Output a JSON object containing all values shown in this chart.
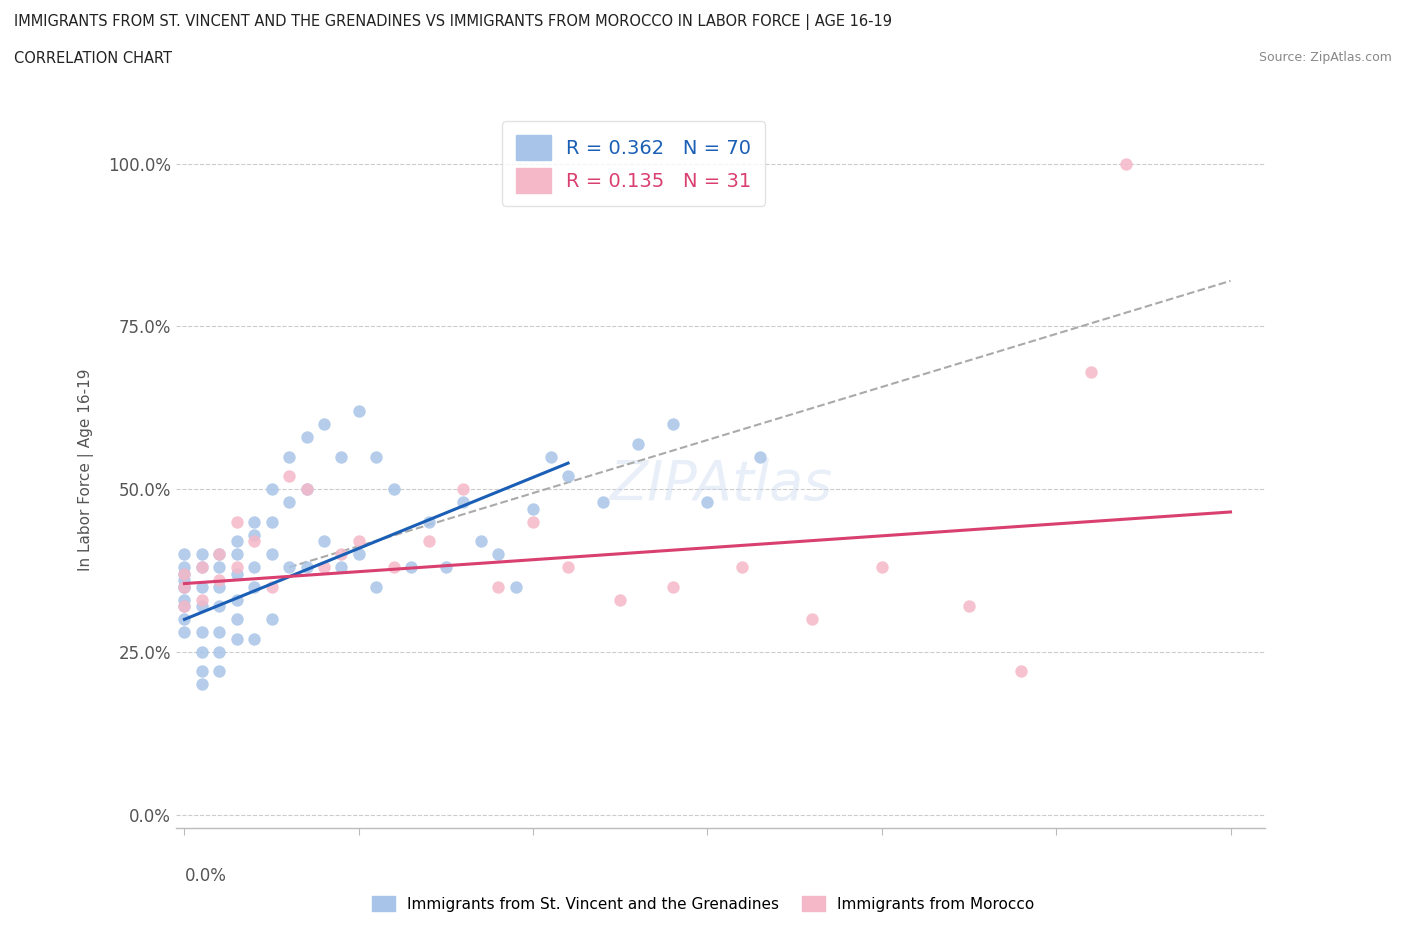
{
  "title": "IMMIGRANTS FROM ST. VINCENT AND THE GRENADINES VS IMMIGRANTS FROM MOROCCO IN LABOR FORCE | AGE 16-19",
  "subtitle": "CORRELATION CHART",
  "source": "Source: ZipAtlas.com",
  "ylabel": "In Labor Force | Age 16-19",
  "ytick_labels": [
    "0.0%",
    "25.0%",
    "50.0%",
    "75.0%",
    "100.0%"
  ],
  "ytick_values": [
    0.0,
    0.25,
    0.5,
    0.75,
    1.0
  ],
  "xlim": [
    -0.0005,
    0.062
  ],
  "ylim": [
    -0.02,
    1.08
  ],
  "blue_R": 0.362,
  "blue_N": 70,
  "pink_R": 0.135,
  "pink_N": 31,
  "blue_color": "#a8c4e8",
  "pink_color": "#f5b8c8",
  "blue_line_color": "#1a5fb5",
  "pink_line_color": "#d94070",
  "trend_line_color": "#aaaaaa",
  "watermark_text": "ZIPAtlas",
  "blue_trend": [
    0.0,
    0.3,
    0.022,
    0.54
  ],
  "pink_trend": [
    0.0,
    0.355,
    0.06,
    0.465
  ],
  "gray_trend": [
    0.006,
    0.38,
    0.06,
    0.82
  ],
  "blue_x": [
    0.0,
    0.0,
    0.0,
    0.0,
    0.0,
    0.0,
    0.0,
    0.0,
    0.0,
    0.0,
    0.001,
    0.001,
    0.001,
    0.001,
    0.001,
    0.001,
    0.001,
    0.001,
    0.002,
    0.002,
    0.002,
    0.002,
    0.002,
    0.002,
    0.002,
    0.003,
    0.003,
    0.003,
    0.003,
    0.003,
    0.003,
    0.004,
    0.004,
    0.004,
    0.004,
    0.004,
    0.005,
    0.005,
    0.005,
    0.005,
    0.006,
    0.006,
    0.006,
    0.007,
    0.007,
    0.007,
    0.008,
    0.008,
    0.009,
    0.009,
    0.01,
    0.01,
    0.011,
    0.011,
    0.012,
    0.013,
    0.014,
    0.015,
    0.016,
    0.017,
    0.018,
    0.019,
    0.02,
    0.021,
    0.022,
    0.024,
    0.026,
    0.028,
    0.03,
    0.033
  ],
  "blue_y": [
    0.33,
    0.35,
    0.37,
    0.38,
    0.4,
    0.35,
    0.32,
    0.3,
    0.28,
    0.36,
    0.38,
    0.4,
    0.35,
    0.32,
    0.28,
    0.25,
    0.22,
    0.2,
    0.4,
    0.38,
    0.35,
    0.32,
    0.28,
    0.25,
    0.22,
    0.42,
    0.4,
    0.37,
    0.33,
    0.3,
    0.27,
    0.45,
    0.43,
    0.38,
    0.35,
    0.27,
    0.5,
    0.45,
    0.4,
    0.3,
    0.55,
    0.48,
    0.38,
    0.58,
    0.5,
    0.38,
    0.6,
    0.42,
    0.55,
    0.38,
    0.62,
    0.4,
    0.55,
    0.35,
    0.5,
    0.38,
    0.45,
    0.38,
    0.48,
    0.42,
    0.4,
    0.35,
    0.47,
    0.55,
    0.52,
    0.48,
    0.57,
    0.6,
    0.48,
    0.55
  ],
  "pink_x": [
    0.0,
    0.0,
    0.0,
    0.001,
    0.001,
    0.002,
    0.002,
    0.003,
    0.003,
    0.004,
    0.005,
    0.006,
    0.007,
    0.008,
    0.009,
    0.01,
    0.012,
    0.014,
    0.016,
    0.018,
    0.02,
    0.022,
    0.025,
    0.028,
    0.032,
    0.036,
    0.04,
    0.045,
    0.048,
    0.052,
    0.054
  ],
  "pink_y": [
    0.35,
    0.37,
    0.32,
    0.38,
    0.33,
    0.4,
    0.36,
    0.45,
    0.38,
    0.42,
    0.35,
    0.52,
    0.5,
    0.38,
    0.4,
    0.42,
    0.38,
    0.42,
    0.5,
    0.35,
    0.45,
    0.38,
    0.33,
    0.35,
    0.38,
    0.3,
    0.38,
    0.32,
    0.22,
    0.68,
    1.0
  ]
}
